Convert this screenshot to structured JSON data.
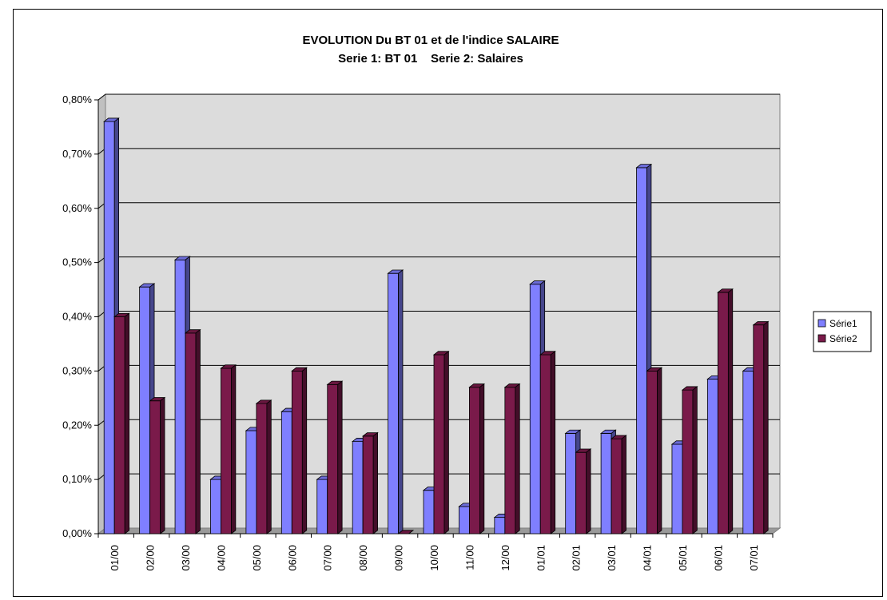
{
  "chart_data": {
    "type": "bar",
    "title": "EVOLUTION Du BT 01 et de l'indice SALAIRE",
    "subtitle": "Serie 1: BT 01    Serie 2: Salaires",
    "categories": [
      "01/00",
      "02/00",
      "03/00",
      "04/00",
      "05/00",
      "06/00",
      "07/00",
      "08/00",
      "09/00",
      "10/00",
      "11/00",
      "12/00",
      "01/01",
      "02/01",
      "03/01",
      "04/01",
      "05/01",
      "06/01",
      "07/01"
    ],
    "series": [
      {
        "name": "Série1",
        "color": "#7f7fff",
        "values": [
          0.76,
          0.455,
          0.505,
          0.1,
          0.19,
          0.225,
          0.1,
          0.17,
          0.48,
          0.08,
          0.05,
          0.03,
          0.46,
          0.185,
          0.185,
          0.675,
          0.165,
          0.285,
          0.3
        ]
      },
      {
        "name": "Série2",
        "color": "#7a1a4a",
        "values": [
          0.4,
          0.245,
          0.37,
          0.305,
          0.24,
          0.3,
          0.275,
          0.18,
          0.0,
          0.33,
          0.27,
          0.27,
          0.33,
          0.15,
          0.175,
          0.3,
          0.265,
          0.445,
          0.385
        ]
      }
    ],
    "ylim": [
      0,
      0.8
    ],
    "yticks": [
      "0,00%",
      "0,10%",
      "0,20%",
      "0,30%",
      "0,40%",
      "0,50%",
      "0,60%",
      "0,70%",
      "0,80%"
    ],
    "grid": true,
    "legend_position": "right"
  }
}
